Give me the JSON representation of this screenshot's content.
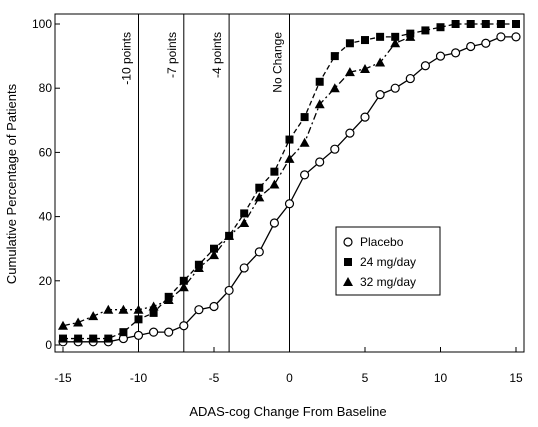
{
  "chart_data": {
    "type": "line",
    "xlabel": "ADAS-cog Change From Baseline",
    "ylabel": "Cumulative  Percentage of Patients",
    "xlim": [
      -15,
      15
    ],
    "ylim": [
      0,
      100
    ],
    "x_ticks": [
      -15,
      -10,
      -5,
      0,
      5,
      10,
      15
    ],
    "y_ticks": [
      0,
      20,
      40,
      60,
      80,
      100
    ],
    "reference_lines": [
      {
        "x": -10,
        "label": "-10 points"
      },
      {
        "x": -7,
        "label": "-7 points"
      },
      {
        "x": -4,
        "label": "-4 points"
      },
      {
        "x": 0,
        "label": "No Change"
      }
    ],
    "legend_position": "center-right",
    "series": [
      {
        "name": "Placebo",
        "marker": "open-circle",
        "line": "solid",
        "x": [
          -15,
          -14,
          -13,
          -12,
          -11,
          -10,
          -9,
          -8,
          -7,
          -6,
          -5,
          -4,
          -3,
          -2,
          -1,
          0,
          1,
          2,
          3,
          4,
          5,
          6,
          7,
          8,
          9,
          10,
          11,
          12,
          13,
          14,
          15
        ],
        "y": [
          1,
          1,
          1,
          1,
          2,
          3,
          4,
          4,
          6,
          11,
          12,
          17,
          24,
          29,
          38,
          44,
          53,
          57,
          61,
          66,
          71,
          78,
          80,
          83,
          87,
          90,
          91,
          93,
          94,
          96,
          96
        ]
      },
      {
        "name": "24 mg/day",
        "marker": "filled-square",
        "line": "dashed",
        "x": [
          -15,
          -14,
          -13,
          -12,
          -11,
          -10,
          -9,
          -8,
          -7,
          -6,
          -5,
          -4,
          -3,
          -2,
          -1,
          0,
          1,
          2,
          3,
          4,
          5,
          6,
          7,
          8,
          9,
          10,
          11,
          12,
          13,
          14,
          15
        ],
        "y": [
          2,
          2,
          2,
          2,
          4,
          8,
          10,
          15,
          20,
          25,
          30,
          34,
          41,
          49,
          54,
          64,
          71,
          82,
          90,
          94,
          95,
          96,
          96,
          97,
          98,
          99,
          100,
          100,
          100,
          100,
          100
        ]
      },
      {
        "name": "32 mg/day",
        "marker": "filled-triangle",
        "line": "dash-dot",
        "x": [
          -15,
          -14,
          -13,
          -12,
          -11,
          -10,
          -9,
          -8,
          -7,
          -6,
          -5,
          -4,
          -3,
          -2,
          -1,
          0,
          1,
          2,
          3,
          4,
          5,
          6,
          7,
          8
        ],
        "y": [
          6,
          7,
          9,
          11,
          11,
          11,
          12,
          14,
          18,
          24,
          28,
          34,
          38,
          46,
          50,
          58,
          63,
          75,
          80,
          85,
          86,
          88,
          94,
          96
        ]
      }
    ]
  }
}
